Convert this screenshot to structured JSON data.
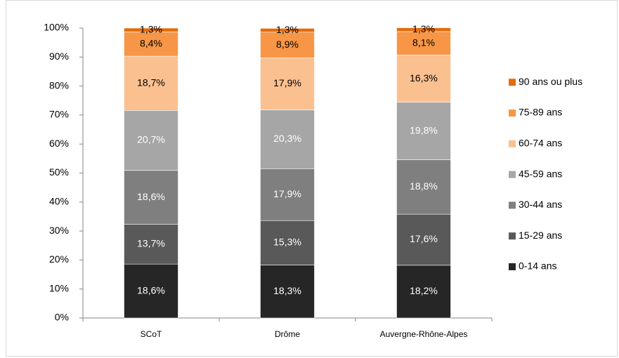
{
  "chart_data": {
    "type": "stacked_bar",
    "categories": [
      "SCoT",
      "Drôme",
      "Auvergne-Rhône-Alpes"
    ],
    "series": [
      {
        "name": "0-14 ans",
        "color": "#262626",
        "values": [
          18.6,
          18.3,
          18.2
        ],
        "value_labels": [
          "18,6%",
          "18,3%",
          "18,2%"
        ]
      },
      {
        "name": "15-29 ans",
        "color": "#595959",
        "values": [
          13.7,
          15.3,
          17.6
        ],
        "value_labels": [
          "13,7%",
          "15,3%",
          "17,6%"
        ]
      },
      {
        "name": "30-44 ans",
        "color": "#7f7f7f",
        "values": [
          18.6,
          17.9,
          18.8
        ],
        "value_labels": [
          "18,6%",
          "17,9%",
          "18,8%"
        ]
      },
      {
        "name": "45-59 ans",
        "color": "#a6a6a6",
        "values": [
          20.7,
          20.3,
          19.8
        ],
        "value_labels": [
          "20,7%",
          "20,3%",
          "19,8%"
        ]
      },
      {
        "name": "60-74 ans",
        "color": "#fac090",
        "values": [
          18.7,
          17.9,
          16.3
        ],
        "value_labels": [
          "18,7%",
          "17,9%",
          "16,3%"
        ]
      },
      {
        "name": "75-89 ans",
        "color": "#f79646",
        "values": [
          8.4,
          8.9,
          8.1
        ],
        "value_labels": [
          "8,4%",
          "8,9%",
          "8,1%"
        ]
      },
      {
        "name": "90 ans ou plus",
        "color": "#e46c0a",
        "values": [
          1.3,
          1.3,
          1.3
        ],
        "value_labels": [
          "1,3%",
          "1,3%",
          "1,3%"
        ]
      }
    ],
    "ylim": [
      0,
      100
    ],
    "yticks": [
      {
        "value": 0,
        "label": "0%"
      },
      {
        "value": 10,
        "label": "10%"
      },
      {
        "value": 20,
        "label": "20%"
      },
      {
        "value": 30,
        "label": "30%"
      },
      {
        "value": 40,
        "label": "40%"
      },
      {
        "value": 50,
        "label": "50%"
      },
      {
        "value": 60,
        "label": "60%"
      },
      {
        "value": 70,
        "label": "70%"
      },
      {
        "value": 80,
        "label": "80%"
      },
      {
        "value": 90,
        "label": "90%"
      },
      {
        "value": 100,
        "label": "100%"
      }
    ],
    "legend": "right"
  }
}
